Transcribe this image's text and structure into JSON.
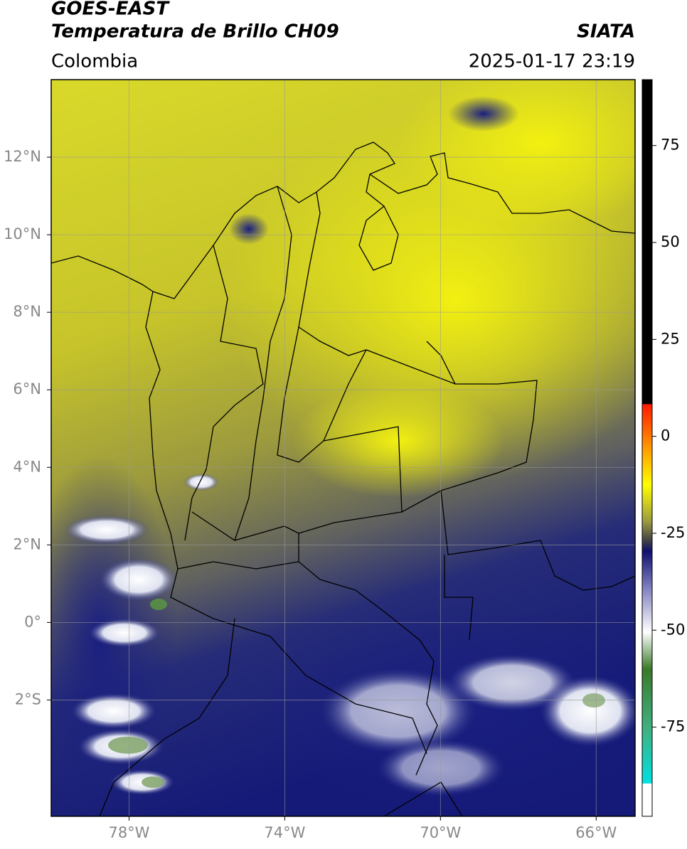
{
  "header": {
    "title": "GOES-EAST",
    "subtitle": "Temperatura de Brillo CH09",
    "source": "SIATA",
    "region": "Colombia",
    "datetime": "2025-01-17 23:19"
  },
  "map": {
    "xlim": [
      -80,
      -65
    ],
    "ylim": [
      -5,
      14
    ],
    "xticks": [
      {
        "value": -78,
        "label": "78°W"
      },
      {
        "value": -74,
        "label": "74°W"
      },
      {
        "value": -70,
        "label": "70°W"
      },
      {
        "value": -66,
        "label": "66°W"
      }
    ],
    "yticks": [
      {
        "value": 12,
        "label": "12°N"
      },
      {
        "value": 10,
        "label": "10°N"
      },
      {
        "value": 8,
        "label": "8°N"
      },
      {
        "value": 6,
        "label": "6°N"
      },
      {
        "value": 4,
        "label": "4°N"
      },
      {
        "value": 2,
        "label": "2°N"
      },
      {
        "value": 0,
        "label": "0°"
      },
      {
        "value": -2,
        "label": "2°S"
      }
    ],
    "grid": true
  },
  "colorbar": {
    "lim": [
      -98,
      92
    ],
    "ticks": [
      75,
      50,
      25,
      0,
      -25,
      -50,
      -75
    ]
  }
}
